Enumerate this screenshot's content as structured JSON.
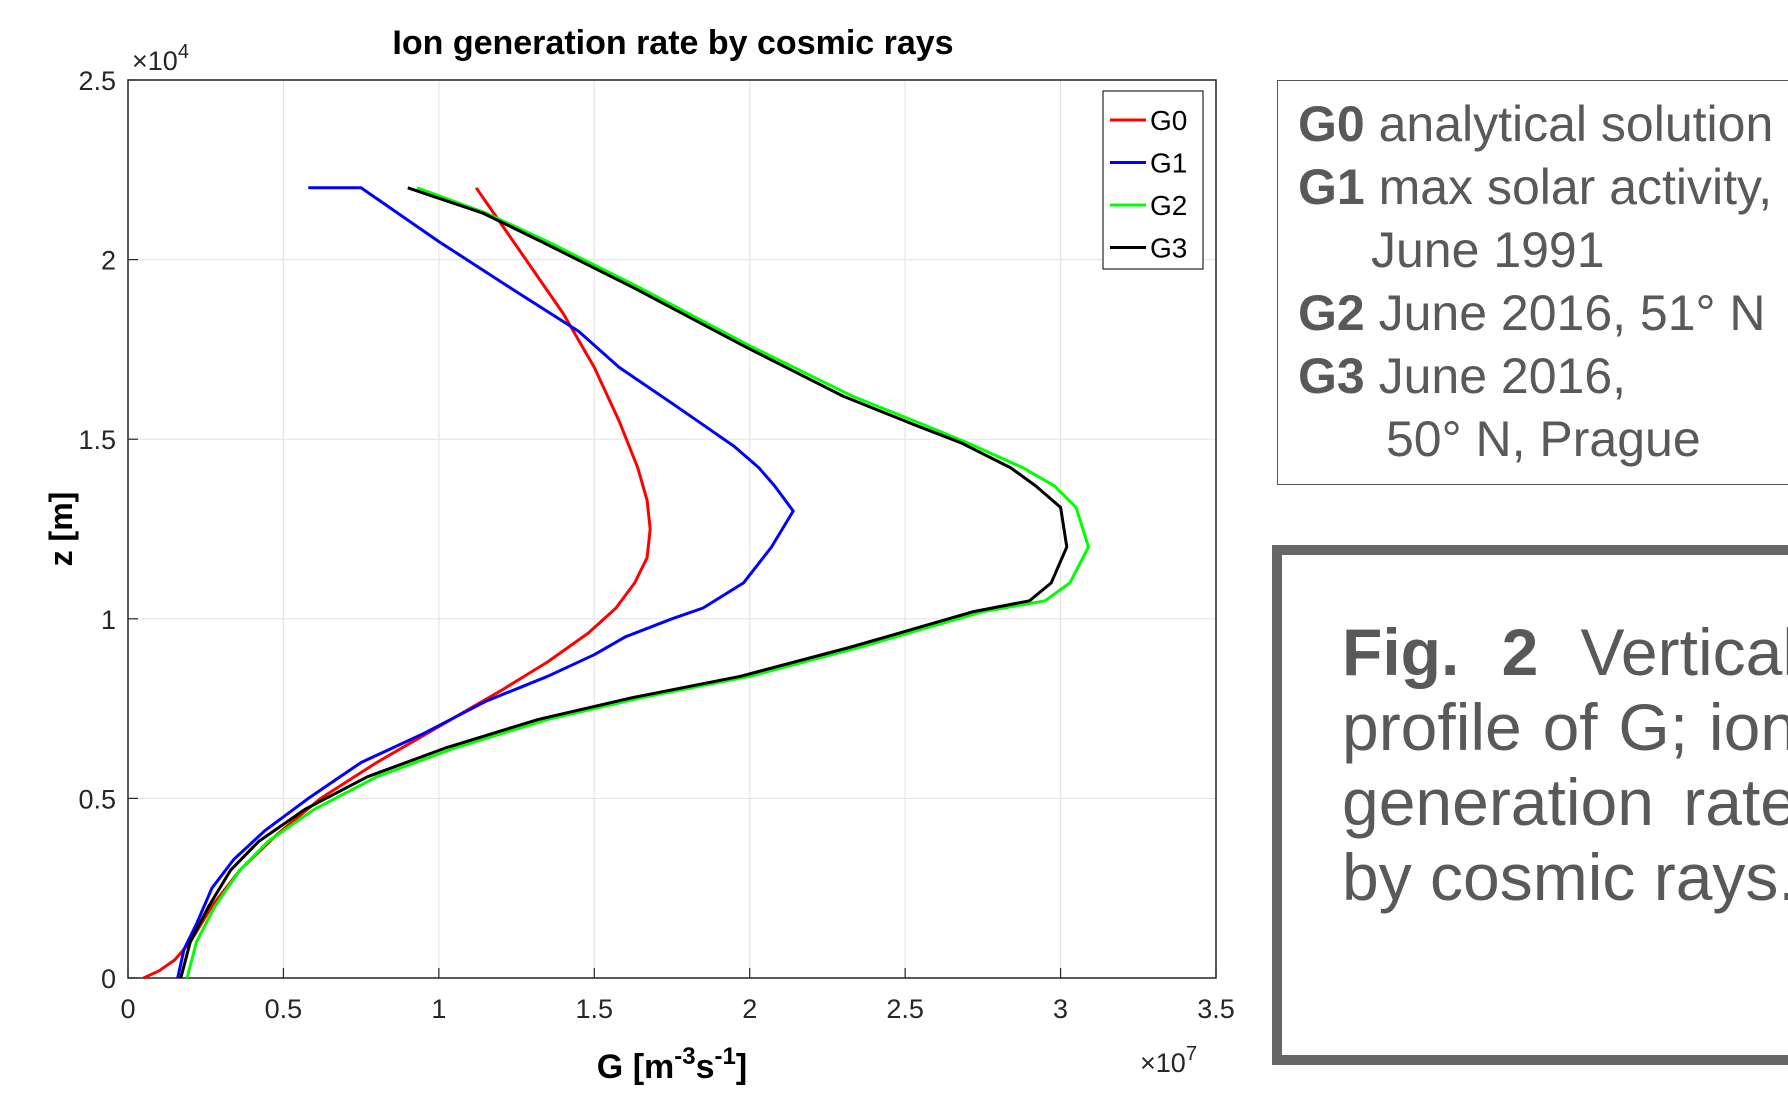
{
  "chart_data": {
    "type": "line",
    "title": "Ion generation rate by cosmic rays",
    "xlabel_base": "G [m",
    "xlabel_exp1": "-3",
    "xlabel_mid": "s",
    "xlabel_exp2": "-1",
    "xlabel_end": "]",
    "ylabel": "z [m]",
    "x_multiplier": "×10",
    "x_multiplier_exp": "7",
    "y_multiplier": "×10",
    "y_multiplier_exp": "4",
    "xlim": [
      0,
      3.5
    ],
    "ylim": [
      0,
      2.5
    ],
    "xticks": [
      "0",
      "0.5",
      "1",
      "1.5",
      "2",
      "2.5",
      "3",
      "3.5"
    ],
    "yticks": [
      "0",
      "0.5",
      "1",
      "1.5",
      "2",
      "2.5"
    ],
    "grid": true,
    "legend_position": "top-right",
    "series": [
      {
        "name": "G0",
        "color": "#ff0000",
        "x": [
          0.05,
          0.1,
          0.15,
          0.2,
          0.27,
          0.36,
          0.48,
          0.62,
          0.8,
          1.0,
          1.2,
          1.35,
          1.48,
          1.57,
          1.63,
          1.67,
          1.68,
          1.67,
          1.64,
          1.58,
          1.5,
          1.4,
          1.28,
          1.12
        ],
        "y": [
          0.0,
          0.02,
          0.05,
          0.1,
          0.2,
          0.3,
          0.4,
          0.5,
          0.6,
          0.7,
          0.8,
          0.88,
          0.96,
          1.03,
          1.1,
          1.17,
          1.25,
          1.33,
          1.42,
          1.55,
          1.7,
          1.85,
          2.0,
          2.2
        ]
      },
      {
        "name": "G1",
        "color": "#0000ff",
        "x": [
          0.16,
          0.18,
          0.22,
          0.27,
          0.34,
          0.44,
          0.58,
          0.75,
          0.95,
          1.15,
          1.35,
          1.5,
          1.6,
          1.75,
          1.85,
          1.98,
          2.07,
          2.14,
          2.08,
          2.03,
          1.95,
          1.85,
          1.75,
          1.58,
          1.45,
          1.25,
          1.0,
          0.75,
          0.58
        ],
        "y": [
          0.0,
          0.08,
          0.15,
          0.25,
          0.33,
          0.41,
          0.5,
          0.6,
          0.68,
          0.77,
          0.84,
          0.9,
          0.95,
          1.0,
          1.03,
          1.1,
          1.2,
          1.3,
          1.37,
          1.42,
          1.48,
          1.54,
          1.6,
          1.7,
          1.8,
          1.91,
          2.05,
          2.2,
          2.2
        ]
      },
      {
        "name": "G2",
        "color": "#00ff00",
        "x": [
          0.19,
          0.22,
          0.28,
          0.36,
          0.45,
          0.6,
          0.8,
          1.05,
          1.35,
          1.65,
          2.0,
          2.35,
          2.55,
          2.75,
          2.95,
          3.03,
          3.09,
          3.05,
          2.98,
          2.88,
          2.7,
          2.56,
          2.33,
          2.0,
          1.65,
          1.35,
          1.15,
          0.93
        ],
        "y": [
          0.0,
          0.1,
          0.2,
          0.3,
          0.38,
          0.47,
          0.56,
          0.64,
          0.72,
          0.78,
          0.84,
          0.92,
          0.97,
          1.02,
          1.05,
          1.1,
          1.2,
          1.31,
          1.37,
          1.42,
          1.49,
          1.54,
          1.62,
          1.76,
          1.92,
          2.05,
          2.13,
          2.2
        ]
      },
      {
        "name": "G3",
        "color": "#000000",
        "x": [
          0.17,
          0.2,
          0.26,
          0.33,
          0.42,
          0.57,
          0.77,
          1.02,
          1.32,
          1.62,
          1.97,
          2.32,
          2.52,
          2.72,
          2.9,
          2.97,
          3.02,
          3.0,
          2.92,
          2.84,
          2.68,
          2.53,
          2.3,
          1.98,
          1.63,
          1.33,
          1.14,
          0.9
        ],
        "y": [
          0.0,
          0.1,
          0.2,
          0.3,
          0.38,
          0.47,
          0.56,
          0.64,
          0.72,
          0.78,
          0.84,
          0.92,
          0.97,
          1.02,
          1.05,
          1.1,
          1.2,
          1.31,
          1.37,
          1.42,
          1.49,
          1.54,
          1.62,
          1.76,
          1.92,
          2.05,
          2.13,
          2.2
        ]
      }
    ]
  },
  "description": {
    "lines": [
      {
        "bold": "G0",
        "text": " analytical solution"
      },
      {
        "bold": "G1",
        "text": " max solar activity,"
      },
      {
        "bold": "",
        "text": "June 1991"
      },
      {
        "bold": "G2",
        "text": " June 2016, 51° N"
      },
      {
        "bold": "G3",
        "text": " June 2016,"
      },
      {
        "bold": "",
        "text": "50° N, Prague"
      }
    ]
  },
  "caption": {
    "label": "Fig. 2",
    "text": " Vertical profile of G; ion generation rate by cosmic rays."
  }
}
